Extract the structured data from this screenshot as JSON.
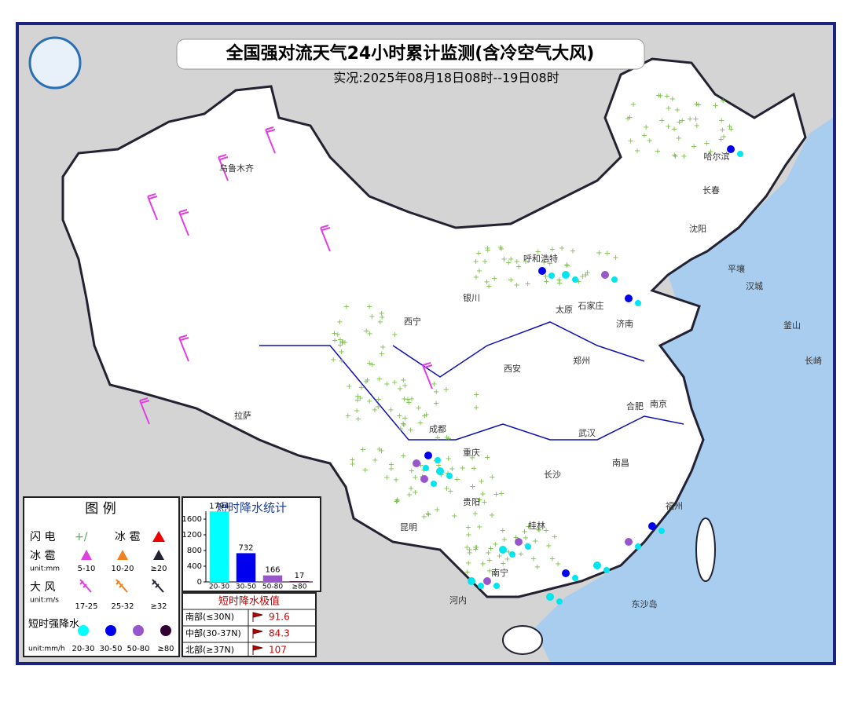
{
  "header": {
    "title": "全国强对流天气24小时累计监测(含冷空气大风)",
    "subtitle": "实况:2025年08月18日08时--19日08时"
  },
  "cities": [
    "乌鲁木齐",
    "哈尔滨",
    "长春",
    "沈阳",
    "平壤",
    "汉城",
    "釜山",
    "长崎",
    "呼和浩特",
    "银川",
    "太原",
    "石家庄",
    "济南",
    "西宁",
    "郑州",
    "西安",
    "合肥",
    "南京",
    "成都",
    "武汉",
    "拉萨",
    "重庆",
    "长沙",
    "南昌",
    "贵阳",
    "福州",
    "昆明",
    "南宁",
    "桂林",
    "河内",
    "东沙岛"
  ],
  "legend": {
    "title": "图 例",
    "lightning": "闪 电",
    "hail": "冰 雹",
    "hail_row": "冰 雹",
    "hail_units": "unit:mm",
    "hail_levels": [
      "5-10",
      "10-20",
      "≥20"
    ],
    "wind": "大 风",
    "wind_units": "unit:m/s",
    "wind_levels": [
      "17-25",
      "25-32",
      "≥32"
    ],
    "rain": "短时强降水",
    "rain_units": "unit:mm/h",
    "rain_levels": [
      "20-30",
      "30-50",
      "50-80",
      "≥80"
    ]
  },
  "chart_data": {
    "type": "bar",
    "title": "短时降水统计",
    "categories": [
      "20-30",
      "30-50",
      "50-80",
      "≥80"
    ],
    "values": [
      1794,
      732,
      166,
      17
    ],
    "colors": [
      "#00ffff",
      "#0000ee",
      "#9955cc",
      "#330033"
    ],
    "ylim": [
      0,
      1800
    ],
    "yticks": [
      0,
      400,
      800,
      1200,
      1600
    ]
  },
  "extremes": {
    "title": "短时降水极值",
    "rows": [
      [
        "南部(≤30N)",
        "91.6"
      ],
      [
        "中部(30-37N)",
        "84.3"
      ],
      [
        "北部(≥37N)",
        "107"
      ]
    ]
  }
}
